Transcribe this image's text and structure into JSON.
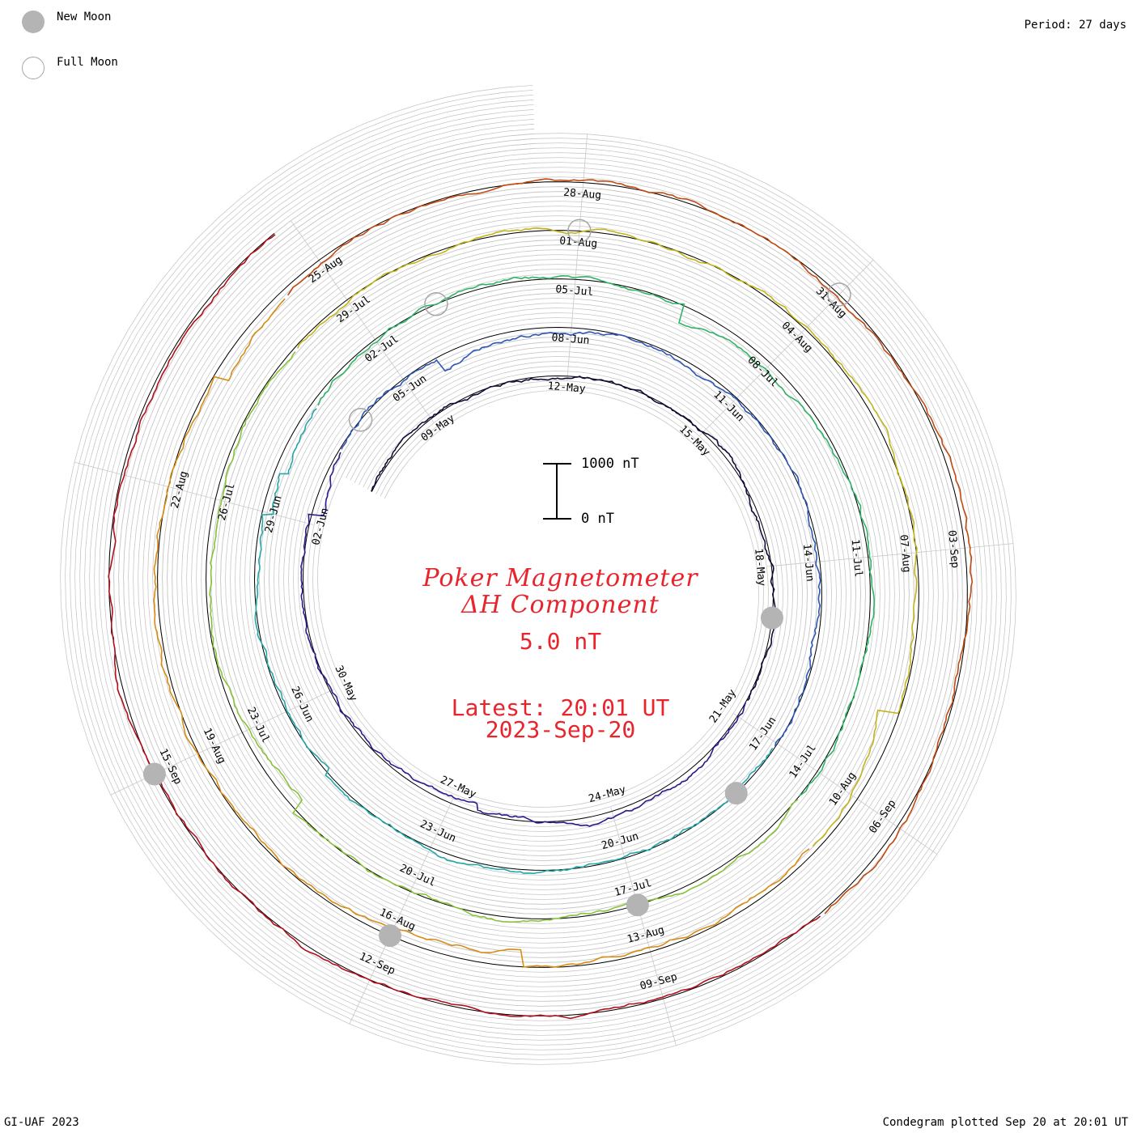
{
  "legend": {
    "new_moon_label": "New Moon",
    "full_moon_label": "Full Moon",
    "new_moon_color": "#b4b4b4",
    "full_moon_color": "#a6a6a6"
  },
  "header": {
    "period_label": "Period: 27 days"
  },
  "center": {
    "title_line1": "Poker Magnetometer",
    "title_line2": "ΔH Component",
    "baseline_label": "5.0 nT",
    "latest_label": "Latest: 20:01 UT",
    "latest_date": "2023-Sep-20",
    "scale_top_label": "1000 nT",
    "scale_bottom_label": "0 nT",
    "title_color": "#e8242c"
  },
  "footer": {
    "left": "GI-UAF 2023",
    "right": "Condegram plotted Sep 20 at 20:01 UT"
  },
  "chart_data": {
    "type": "condegram spiral",
    "period_days": 27,
    "start_date": "2023-05-07",
    "end_date": "2023-09-20",
    "scale_bar_nT": [
      0,
      1000
    ],
    "date_labels": [
      "09-May",
      "12-May",
      "15-May",
      "18-May",
      "21-May",
      "24-May",
      "27-May",
      "30-May",
      "02-Jun",
      "05-Jun",
      "08-Jun",
      "11-Jun",
      "14-Jun",
      "17-Jun",
      "20-Jun",
      "23-Jun",
      "26-Jun",
      "29-Jun",
      "02-Jul",
      "05-Jul",
      "08-Jul",
      "11-Jul",
      "14-Jul",
      "17-Jul",
      "20-Jul",
      "23-Jul",
      "26-Jul",
      "29-Jul",
      "01-Aug",
      "04-Aug",
      "07-Aug",
      "10-Aug",
      "13-Aug",
      "16-Aug",
      "19-Aug",
      "22-Aug",
      "25-Aug",
      "28-Aug",
      "31-Aug",
      "03-Sep",
      "06-Sep",
      "09-Sep",
      "12-Sep",
      "15-Sep"
    ],
    "new_moons": [
      "2023-05-19",
      "2023-06-18",
      "2023-07-17",
      "2023-08-16",
      "2023-09-15"
    ],
    "full_moons": [
      "2023-06-04",
      "2023-07-03",
      "2023-08-01",
      "2023-08-31"
    ],
    "series_colors": [
      "#100c3a",
      "#281c8c",
      "#2b56b4",
      "#23a6a8",
      "#2fb466",
      "#88c23a",
      "#c2b41a",
      "#d88c14",
      "#c04a10",
      "#b0101a"
    ]
  }
}
